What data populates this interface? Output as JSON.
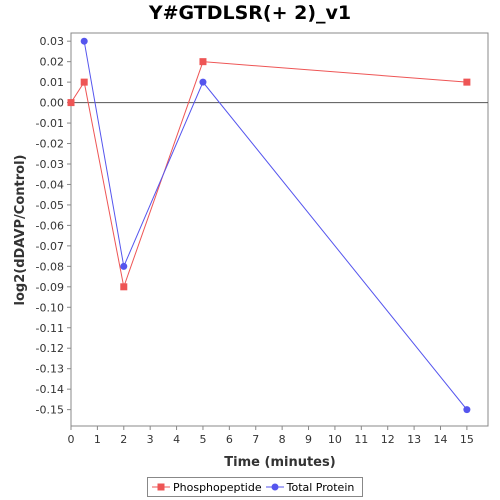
{
  "chart_data": {
    "type": "line",
    "title": "Y#GTDLSR(+ 2)_v1",
    "xlabel": "Time (minutes)",
    "ylabel": "log2(dDAVP/Control)",
    "xlim": [
      0,
      15.8
    ],
    "ylim": [
      -0.158,
      0.034
    ],
    "x_ticks": [
      0,
      1,
      2,
      3,
      4,
      5,
      6,
      7,
      8,
      9,
      10,
      11,
      12,
      13,
      14,
      15
    ],
    "y_ticks": [
      0.03,
      0.02,
      0.01,
      0.0,
      -0.01,
      -0.02,
      -0.03,
      -0.04,
      -0.05,
      -0.06,
      -0.07,
      -0.08,
      -0.09,
      -0.1,
      -0.11,
      -0.12,
      -0.13,
      -0.14,
      -0.15
    ],
    "y_tick_labels": [
      "0.03",
      "0.02",
      "0.01",
      "0.00",
      "-0.01",
      "-0.02",
      "-0.03",
      "-0.04",
      "-0.05",
      "-0.06",
      "-0.07",
      "-0.08",
      "-0.09",
      "-0.10",
      "-0.11",
      "-0.12",
      "-0.13",
      "-0.14",
      "-0.15"
    ],
    "zero_line": 0,
    "grid": false,
    "legend_position": "bottom",
    "series": [
      {
        "name": "Phosphopeptide",
        "color": "#ee5555",
        "marker": "square",
        "x": [
          0,
          0.5,
          2,
          5,
          15
        ],
        "y": [
          0.0,
          0.01,
          -0.09,
          0.02,
          0.01
        ]
      },
      {
        "name": "Total Protein",
        "color": "#5555ee",
        "marker": "circle",
        "x": [
          0.5,
          2,
          5,
          15
        ],
        "y": [
          0.03,
          -0.08,
          0.01,
          -0.15
        ]
      }
    ]
  }
}
